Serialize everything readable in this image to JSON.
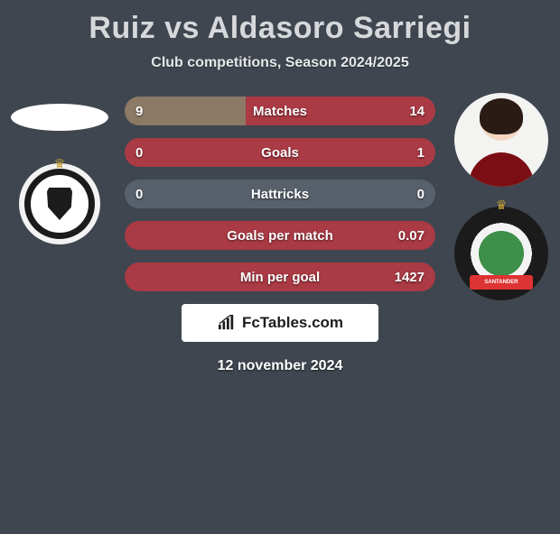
{
  "title": {
    "p1": "Ruiz",
    "vs": "vs",
    "p2": "Aldasoro Sarriegi"
  },
  "subtitle": "Club competitions, Season 2024/2025",
  "date": "12 november 2024",
  "logo_text": "FcTables.com",
  "colors": {
    "background": "#3f464f",
    "bar_left": "#8c7a66",
    "bar_right": "#aa3a44",
    "bar_neutral": "#57606b",
    "text_shadow": "rgba(0,0,0,0.55)"
  },
  "left_club": {
    "label": "Burgos CF"
  },
  "right_club": {
    "label": "Racing Santander",
    "banner": "SANTANDER"
  },
  "bars": [
    {
      "label": "Matches",
      "left_val": "9",
      "right_val": "14",
      "left_pct": 39,
      "right_pct": 61,
      "left_color": "#8c7a66",
      "right_color": "#aa3a44"
    },
    {
      "label": "Goals",
      "left_val": "0",
      "right_val": "1",
      "left_pct": 0,
      "right_pct": 100,
      "left_color": "#8c7a66",
      "right_color": "#aa3a44"
    },
    {
      "label": "Hattricks",
      "left_val": "0",
      "right_val": "0",
      "left_pct": 50,
      "right_pct": 50,
      "left_color": "#57606b",
      "right_color": "#57606b"
    },
    {
      "label": "Goals per match",
      "left_val": "",
      "right_val": "0.07",
      "left_pct": 0,
      "right_pct": 100,
      "left_color": "#8c7a66",
      "right_color": "#aa3a44"
    },
    {
      "label": "Min per goal",
      "left_val": "",
      "right_val": "1427",
      "left_pct": 0,
      "right_pct": 100,
      "left_color": "#8c7a66",
      "right_color": "#aa3a44"
    }
  ]
}
